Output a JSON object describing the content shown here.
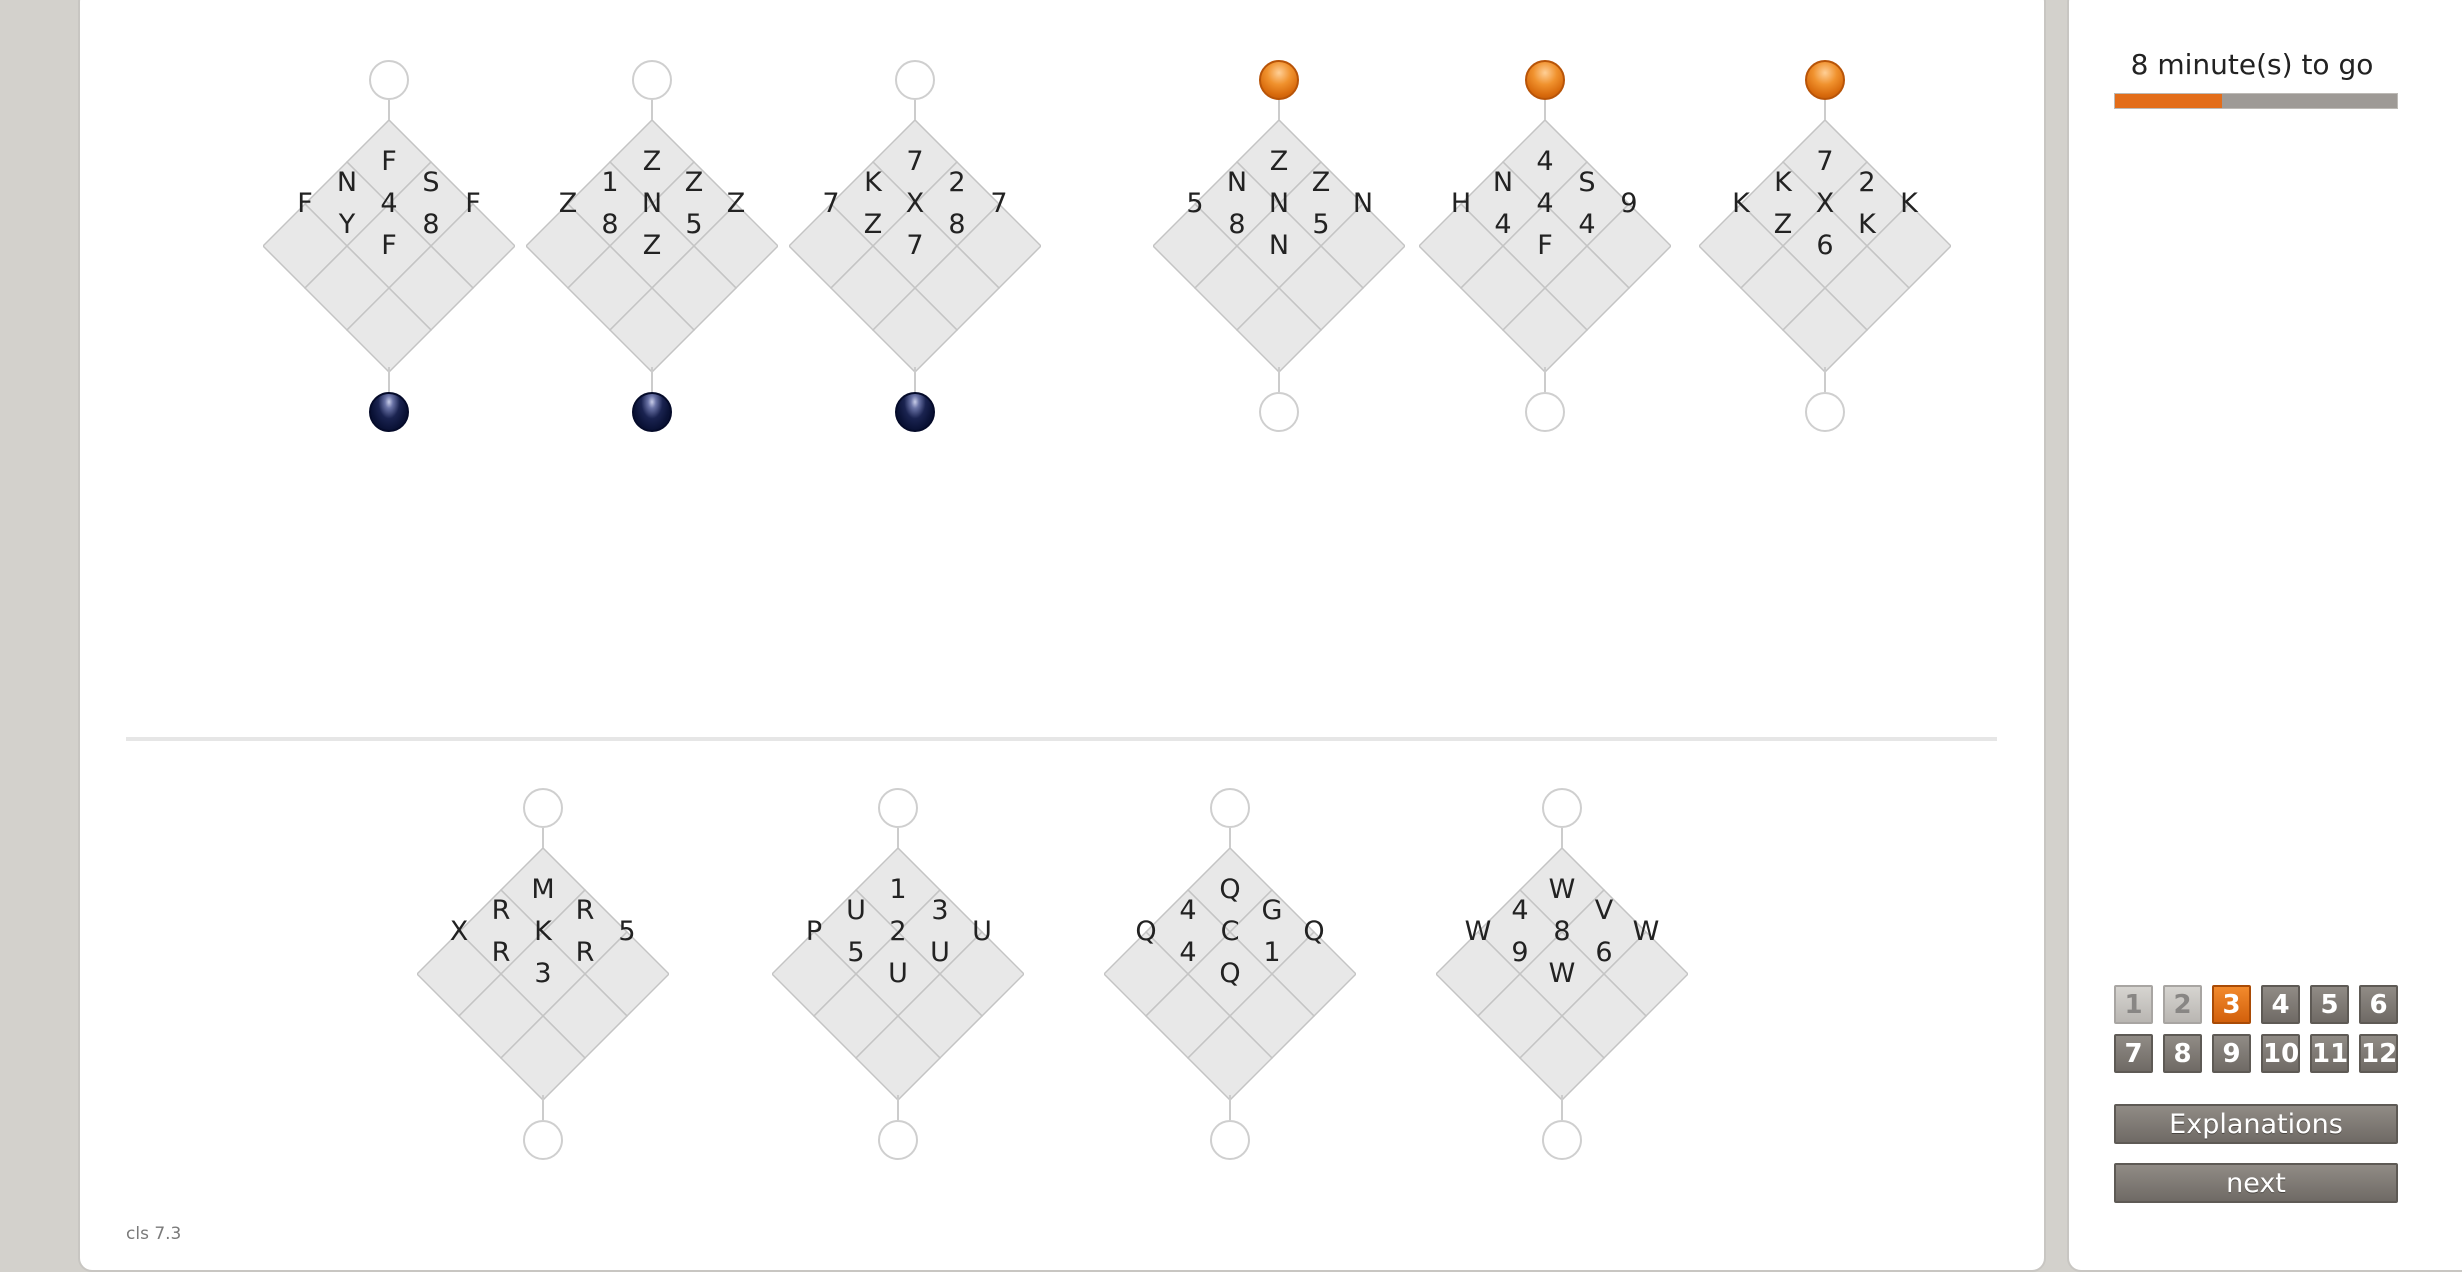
{
  "example_puzzles": [
    {
      "cells": [
        "F",
        "N",
        "S",
        "F",
        "4",
        "F",
        "Y",
        "8",
        "F"
      ],
      "top_marker": "empty",
      "bottom_marker": "navy"
    },
    {
      "cells": [
        "Z",
        "1",
        "Z",
        "Z",
        "N",
        "Z",
        "8",
        "5",
        "Z"
      ],
      "top_marker": "empty",
      "bottom_marker": "navy"
    },
    {
      "cells": [
        "7",
        "K",
        "2",
        "7",
        "X",
        "7",
        "Z",
        "8",
        "7"
      ],
      "top_marker": "empty",
      "bottom_marker": "navy"
    },
    {
      "cells": [
        "Z",
        "N",
        "Z",
        "5",
        "N",
        "N",
        "8",
        "5",
        "N"
      ],
      "top_marker": "orange",
      "bottom_marker": "empty"
    },
    {
      "cells": [
        "4",
        "N",
        "S",
        "H",
        "4",
        "9",
        "4",
        "4",
        "F"
      ],
      "top_marker": "orange",
      "bottom_marker": "empty"
    },
    {
      "cells": [
        "7",
        "K",
        "2",
        "K",
        "X",
        "K",
        "Z",
        "K",
        "6"
      ],
      "top_marker": "orange",
      "bottom_marker": "empty"
    }
  ],
  "question_puzzles": [
    {
      "cells": [
        "M",
        "R",
        "R",
        "X",
        "K",
        "5",
        "R",
        "R",
        "3"
      ],
      "top_marker": "empty",
      "bottom_marker": "empty"
    },
    {
      "cells": [
        "1",
        "U",
        "3",
        "P",
        "2",
        "U",
        "5",
        "U",
        "U"
      ],
      "top_marker": "empty",
      "bottom_marker": "empty"
    },
    {
      "cells": [
        "Q",
        "4",
        "G",
        "Q",
        "C",
        "Q",
        "4",
        "1",
        "Q"
      ],
      "top_marker": "empty",
      "bottom_marker": "empty"
    },
    {
      "cells": [
        "W",
        "4",
        "V",
        "W",
        "8",
        "W",
        "9",
        "6",
        "W"
      ],
      "top_marker": "empty",
      "bottom_marker": "empty"
    }
  ],
  "footer": {
    "version": "cls 7.3"
  },
  "timer": {
    "text": "8 minute(s) to go",
    "progress_fraction": 0.38
  },
  "question_nav": {
    "items": [
      {
        "label": "1",
        "state": "visited"
      },
      {
        "label": "2",
        "state": "visited"
      },
      {
        "label": "3",
        "state": "current"
      },
      {
        "label": "4",
        "state": "default"
      },
      {
        "label": "5",
        "state": "default"
      },
      {
        "label": "6",
        "state": "default"
      },
      {
        "label": "7",
        "state": "default"
      },
      {
        "label": "8",
        "state": "default"
      },
      {
        "label": "9",
        "state": "default"
      },
      {
        "label": "10",
        "state": "default"
      },
      {
        "label": "11",
        "state": "default"
      },
      {
        "label": "12",
        "state": "default"
      }
    ]
  },
  "buttons": {
    "explanations_label": "Explanations",
    "next_label": "next"
  },
  "colors": {
    "accent_orange": "#e36d1a",
    "navy_marker": "#0a1236",
    "grid_fill": "#e8e8e8",
    "grid_line": "#c4c4c4"
  }
}
